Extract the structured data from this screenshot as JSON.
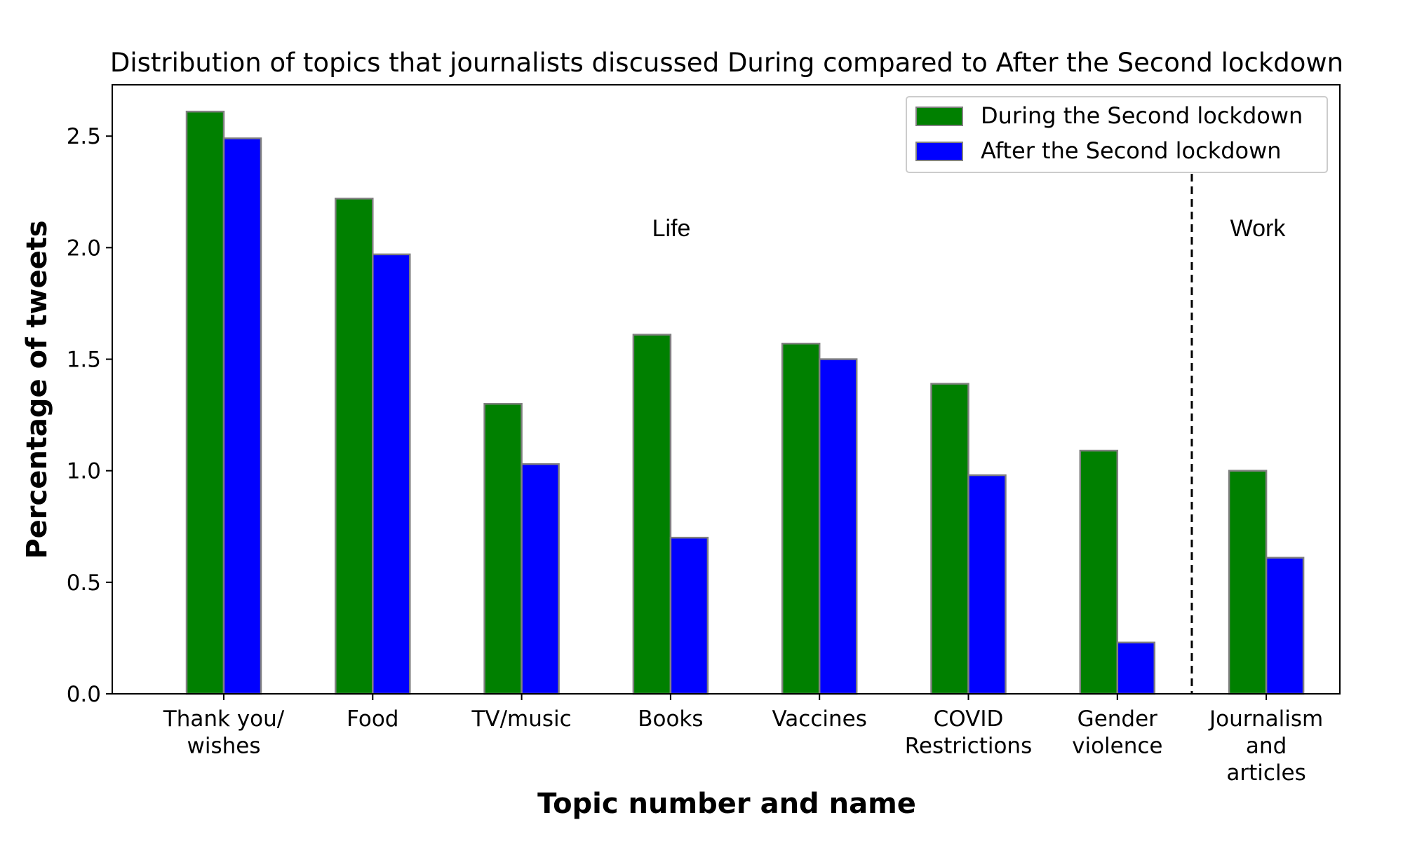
{
  "chart_data": {
    "type": "bar",
    "title": "Distribution of topics that journalists discussed During compared to After the Second lockdown",
    "xlabel": "Topic number and name",
    "ylabel": "Percentage of tweets",
    "ylim": [
      0,
      2.73
    ],
    "yticks": [
      "0.0",
      "0.5",
      "1.0",
      "1.5",
      "2.0",
      "2.5"
    ],
    "categories": [
      [
        "Thank you/",
        "wishes"
      ],
      [
        "Food"
      ],
      [
        "TV/music"
      ],
      [
        "Books"
      ],
      [
        "Vaccines"
      ],
      [
        "COVID",
        "Restrictions"
      ],
      [
        "Gender",
        "violence"
      ],
      [
        "Journalism",
        "and",
        "articles"
      ]
    ],
    "series": [
      {
        "name": "During the Second lockdown",
        "color": "#008000",
        "values": [
          2.61,
          2.22,
          1.3,
          1.61,
          1.57,
          1.39,
          1.09,
          1.0
        ]
      },
      {
        "name": "After the Second lockdown",
        "color": "#0000ff",
        "values": [
          2.49,
          1.97,
          1.03,
          0.7,
          1.5,
          0.98,
          0.23,
          0.61
        ]
      }
    ],
    "bar_edge_color": "#808080",
    "regions": [
      {
        "label": "Life"
      },
      {
        "label": "Work"
      }
    ],
    "legend_position": "top-right",
    "grid": false
  }
}
